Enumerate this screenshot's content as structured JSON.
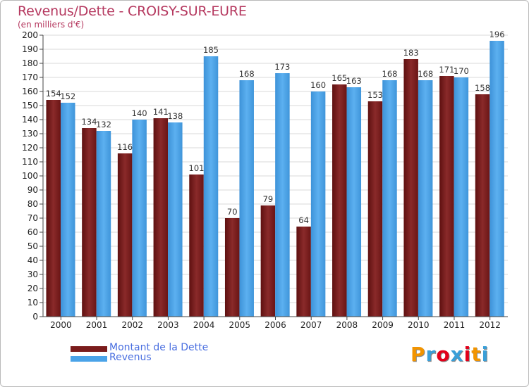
{
  "title": "Revenus/Dette - CROISY-SUR-EURE",
  "subtitle": "(en milliers d'€)",
  "colors": {
    "title": "#b5385f",
    "dette": "#7a1c1c",
    "revenus": "#4aa3e8",
    "legend_text": "#4a6fe0",
    "grid": "#d9d9d9"
  },
  "legend": [
    {
      "label": "Montant de la Dette",
      "color": "#7a1c1c"
    },
    {
      "label": "Revenus",
      "color": "#4aa3e8"
    }
  ],
  "logo": {
    "text": "Proxiti",
    "colors": [
      "#f29400",
      "#3a9fd8",
      "#e2001a",
      "#3a9fd8",
      "#e2001a",
      "#f29400",
      "#3a9fd8"
    ]
  },
  "chart_data": {
    "type": "bar",
    "title": "Revenus/Dette - CROISY-SUR-EURE",
    "subtitle": "(en milliers d'€)",
    "categories": [
      "2000",
      "2001",
      "2002",
      "2003",
      "2004",
      "2005",
      "2006",
      "2007",
      "2008",
      "2009",
      "2010",
      "2011",
      "2012"
    ],
    "series": [
      {
        "name": "Montant de la Dette",
        "values": [
          154,
          134,
          116,
          141,
          101,
          70,
          79,
          64,
          165,
          153,
          183,
          171,
          158
        ]
      },
      {
        "name": "Revenus",
        "values": [
          152,
          132,
          140,
          138,
          185,
          168,
          173,
          160,
          163,
          168,
          168,
          170,
          196
        ]
      }
    ],
    "ylim": [
      0,
      200
    ],
    "ytick_step": 10,
    "grid": true,
    "legend_position": "bottom-left",
    "xlabel": "",
    "ylabel": ""
  }
}
